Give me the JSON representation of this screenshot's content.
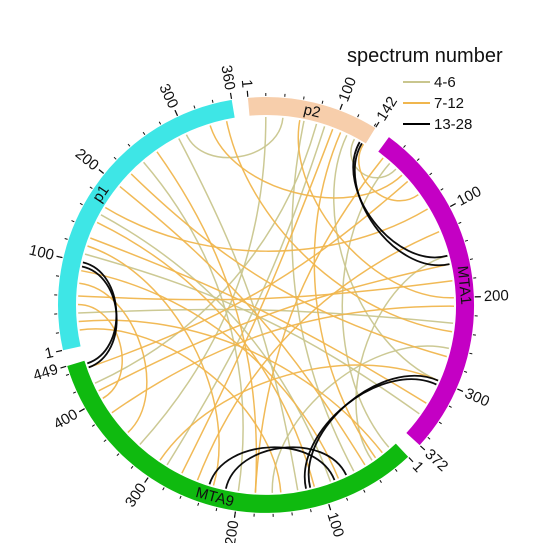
{
  "chart_data": {
    "type": "chord",
    "legend": {
      "title": "spectrum number",
      "placement": "top-right",
      "entries": [
        {
          "label": "4-6",
          "color": "#c9c68e"
        },
        {
          "label": "7-12",
          "color": "#f0b64e"
        },
        {
          "label": "13-28",
          "color": "#000000"
        }
      ]
    },
    "segments": [
      {
        "name": "p2",
        "length": 142,
        "color": "#f7ceab",
        "ticks": [
          1,
          100,
          142
        ]
      },
      {
        "name": "MTA1",
        "length": 372,
        "color": "#c400c4",
        "ticks": [
          100,
          200,
          300,
          372
        ]
      },
      {
        "name": "MTA9",
        "length": 449,
        "color": "#0fba0f",
        "ticks": [
          1,
          100,
          200,
          300,
          400,
          449
        ]
      },
      {
        "name": "p1",
        "length": 360,
        "color": "#3ee6e6",
        "ticks": [
          1,
          100,
          200,
          300,
          360
        ]
      }
    ],
    "links": [
      {
        "source": [
          "p2",
          65
        ],
        "target": [
          "MTA9",
          60
        ],
        "group": "4-6"
      },
      {
        "source": [
          "p2",
          90
        ],
        "target": [
          "MTA9",
          290
        ],
        "group": "4-6"
      },
      {
        "source": [
          "p2",
          118
        ],
        "target": [
          "MTA1",
          300
        ],
        "group": "4-6"
      },
      {
        "source": [
          "p2",
          128
        ],
        "target": [
          "MTA1",
          30
        ],
        "group": "4-6"
      },
      {
        "source": [
          "MTA1",
          150
        ],
        "target": [
          "MTA9",
          35
        ],
        "group": "4-6"
      },
      {
        "source": [
          "MTA1",
          230
        ],
        "target": [
          "p1",
          40
        ],
        "group": "4-6"
      },
      {
        "source": [
          "MTA1",
          345
        ],
        "target": [
          "p1",
          110
        ],
        "group": "4-6"
      },
      {
        "source": [
          "MTA9",
          200
        ],
        "target": [
          "p1",
          240
        ],
        "group": "4-6"
      },
      {
        "source": [
          "MTA9",
          330
        ],
        "target": [
          "p2",
          20
        ],
        "group": "4-6"
      },
      {
        "source": [
          "p1",
          290
        ],
        "target": [
          "MTA9",
          130
        ],
        "group": "4-6"
      },
      {
        "source": [
          "p1",
          160
        ],
        "target": [
          "MTA9",
          90
        ],
        "group": "4-6"
      },
      {
        "source": [
          "MTA1",
          20
        ],
        "target": [
          "MTA9",
          10
        ],
        "group": "4-6"
      },
      {
        "source": [
          "p2",
          40
        ],
        "target": [
          "p1",
          300
        ],
        "group": "4-6"
      },
      {
        "source": [
          "p2",
          80
        ],
        "target": [
          "MTA9",
          420
        ],
        "group": "4-6"
      },
      {
        "source": [
          "MTA1",
          260
        ],
        "target": [
          "MTA9",
          160
        ],
        "group": "4-6"
      },
      {
        "source": [
          "p2",
          140
        ],
        "target": [
          "MTA1",
          70
        ],
        "group": "7-12"
      },
      {
        "source": [
          "MTA1",
          90
        ],
        "target": [
          "p1",
          170
        ],
        "group": "7-12"
      },
      {
        "source": [
          "MTA1",
          120
        ],
        "target": [
          "MTA9",
          250
        ],
        "group": "7-12"
      },
      {
        "source": [
          "MTA1",
          180
        ],
        "target": [
          "p1",
          60
        ],
        "group": "7-12"
      },
      {
        "source": [
          "MTA1",
          210
        ],
        "target": [
          "MTA9",
          380
        ],
        "group": "7-12"
      },
      {
        "source": [
          "MTA1",
          270
        ],
        "target": [
          "p1",
          220
        ],
        "group": "7-12"
      },
      {
        "source": [
          "MTA1",
          300
        ],
        "target": [
          "MTA9",
          300
        ],
        "group": "7-12"
      },
      {
        "source": [
          "MTA1",
          330
        ],
        "target": [
          "p1",
          130
        ],
        "group": "7-12"
      },
      {
        "source": [
          "MTA1",
          50
        ],
        "target": [
          "MTA9",
          440
        ],
        "group": "7-12"
      },
      {
        "source": [
          "MTA1",
          40
        ],
        "target": [
          "p1",
          330
        ],
        "group": "7-12"
      },
      {
        "source": [
          "MTA9",
          20
        ],
        "target": [
          "p1",
          30
        ],
        "group": "7-12"
      },
      {
        "source": [
          "MTA9",
          45
        ],
        "target": [
          "p1",
          200
        ],
        "group": "7-12"
      },
      {
        "source": [
          "MTA9",
          80
        ],
        "target": [
          "p1",
          90
        ],
        "group": "7-12"
      },
      {
        "source": [
          "MTA9",
          110
        ],
        "target": [
          "p1",
          150
        ],
        "group": "7-12"
      },
      {
        "source": [
          "MTA9",
          150
        ],
        "target": [
          "p1",
          20
        ],
        "group": "7-12"
      },
      {
        "source": [
          "MTA9",
          180
        ],
        "target": [
          "p1",
          260
        ],
        "group": "7-12"
      },
      {
        "source": [
          "MTA9",
          230
        ],
        "target": [
          "p1",
          120
        ],
        "group": "7-12"
      },
      {
        "source": [
          "MTA9",
          350
        ],
        "target": [
          "p1",
          75
        ],
        "group": "7-12"
      },
      {
        "source": [
          "MTA9",
          400
        ],
        "target": [
          "p1",
          50
        ],
        "group": "7-12"
      },
      {
        "source": [
          "p2",
          100
        ],
        "target": [
          "MTA9",
          270
        ],
        "group": "7-12"
      },
      {
        "source": [
          "p2",
          110
        ],
        "target": [
          "MTA9",
          30
        ],
        "group": "7-12"
      },
      {
        "source": [
          "p2",
          60
        ],
        "target": [
          "MTA1",
          200
        ],
        "group": "7-12"
      },
      {
        "source": [
          "MTA1",
          10
        ],
        "target": [
          "MTA9",
          180
        ],
        "group": "7-12"
      },
      {
        "source": [
          "MTA1",
          160
        ],
        "target": [
          "MTA9",
          410
        ],
        "group": "7-12"
      },
      {
        "source": [
          "p1",
          350
        ],
        "target": [
          "MTA1",
          240
        ],
        "group": "7-12"
      },
      {
        "source": [
          "p2",
          135
        ],
        "target": [
          "MTA1",
          150
        ],
        "group": "13-28"
      },
      {
        "source": [
          "p2",
          138
        ],
        "target": [
          "MTA1",
          160
        ],
        "group": "13-28"
      },
      {
        "source": [
          "MTA1",
          300
        ],
        "target": [
          "MTA9",
          115
        ],
        "group": "13-28"
      },
      {
        "source": [
          "MTA1",
          305
        ],
        "target": [
          "MTA9",
          120
        ],
        "group": "13-28"
      },
      {
        "source": [
          "p1",
          95
        ],
        "target": [
          "MTA9",
          440
        ],
        "group": "13-28"
      },
      {
        "source": [
          "p1",
          100
        ],
        "target": [
          "MTA9",
          445
        ],
        "group": "13-28"
      },
      {
        "source": [
          "MTA9",
          85
        ],
        "target": [
          "MTA9",
          235
        ],
        "group": "13-28"
      },
      {
        "source": [
          "MTA9",
          70
        ],
        "target": [
          "MTA9",
          215
        ],
        "group": "13-28"
      }
    ]
  }
}
